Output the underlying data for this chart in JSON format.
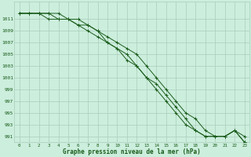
{
  "title": "Graphe pression niveau de la mer (hPa)",
  "background_color": "#cceedd",
  "grid_color": "#aaccbb",
  "line_color": "#1a5c1a",
  "x_ticks": [
    0,
    1,
    2,
    3,
    4,
    5,
    6,
    7,
    8,
    9,
    10,
    11,
    12,
    13,
    14,
    15,
    16,
    17,
    18,
    19,
    20,
    21,
    22,
    23
  ],
  "y_min": 990,
  "y_max": 1013,
  "y_ticks": [
    991,
    993,
    995,
    997,
    999,
    1001,
    1003,
    1005,
    1007,
    1009,
    1011
  ],
  "series": [
    [
      1012,
      1012,
      1012,
      1012,
      1012,
      1011,
      1011,
      1010,
      1009,
      1008,
      1007,
      1006,
      1005,
      1003,
      1001,
      999,
      997,
      995,
      994,
      992,
      991,
      991,
      992,
      991
    ],
    [
      1012,
      1012,
      1012,
      1011,
      1011,
      1011,
      1010,
      1010,
      1009,
      1007,
      1006,
      1005,
      1003,
      1001,
      1000,
      998,
      996,
      994,
      992,
      991,
      991,
      991,
      992,
      990
    ],
    [
      1012,
      1012,
      1012,
      1012,
      1011,
      1011,
      1010,
      1009,
      1008,
      1007,
      1006,
      1004,
      1003,
      1001,
      999,
      997,
      995,
      993,
      992,
      991,
      991,
      991,
      992,
      990
    ]
  ]
}
